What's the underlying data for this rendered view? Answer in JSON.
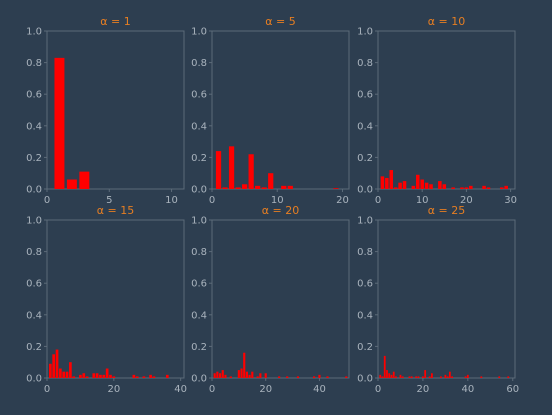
{
  "figure": {
    "background": "#2d3e50",
    "axes_color": "#5c6b79",
    "text_color": "#a9b3bd",
    "title_color": "#e67e22",
    "bar_color": "#ff0000"
  },
  "chart_data": [
    {
      "type": "bar",
      "title": "α = 1",
      "xlim": [
        0,
        11
      ],
      "ylim": [
        0,
        1.0
      ],
      "xticks": [
        0,
        5,
        10
      ],
      "yticks": [
        0.0,
        0.2,
        0.4,
        0.6,
        0.8,
        1.0
      ],
      "bar_width": 0.8,
      "x": [
        1,
        2,
        3
      ],
      "values": [
        0.83,
        0.06,
        0.11
      ]
    },
    {
      "type": "bar",
      "title": "α = 5",
      "xlim": [
        0,
        21
      ],
      "ylim": [
        0,
        1.0
      ],
      "xticks": [
        0,
        10,
        20
      ],
      "yticks": [
        0.0,
        0.2,
        0.4,
        0.6,
        0.8,
        1.0
      ],
      "bar_width": 0.8,
      "x": [
        1,
        2,
        3,
        4,
        5,
        6,
        7,
        8,
        9,
        10,
        11,
        12,
        13,
        14,
        15,
        16,
        17,
        18,
        19,
        20
      ],
      "values": [
        0.24,
        0.01,
        0.27,
        0.01,
        0.03,
        0.22,
        0.02,
        0.01,
        0.1,
        0.0,
        0.02,
        0.02,
        0.0,
        0.0,
        0.0,
        0.0,
        0.0,
        0.0,
        0.005,
        0.0
      ]
    },
    {
      "type": "bar",
      "title": "α = 10",
      "xlim": [
        0,
        31
      ],
      "ylim": [
        0,
        1.0
      ],
      "xticks": [
        0,
        10,
        20,
        30
      ],
      "yticks": [
        0.0,
        0.2,
        0.4,
        0.6,
        0.8,
        1.0
      ],
      "bar_width": 0.8,
      "x": [
        1,
        2,
        3,
        4,
        5,
        6,
        7,
        8,
        9,
        10,
        11,
        12,
        13,
        14,
        15,
        16,
        17,
        18,
        19,
        20,
        21,
        22,
        23,
        24,
        25,
        26,
        27,
        28,
        29,
        30
      ],
      "values": [
        0.08,
        0.07,
        0.12,
        0.01,
        0.04,
        0.05,
        0.0,
        0.02,
        0.09,
        0.06,
        0.04,
        0.03,
        0.0,
        0.05,
        0.03,
        0.0,
        0.01,
        0.0,
        0.01,
        0.01,
        0.02,
        0.0,
        0.0,
        0.02,
        0.01,
        0.0,
        0.0,
        0.01,
        0.02,
        0.0
      ]
    },
    {
      "type": "bar",
      "title": "α = 15",
      "xlim": [
        0,
        41
      ],
      "ylim": [
        0,
        1.0
      ],
      "xticks": [
        0,
        20,
        40
      ],
      "yticks": [
        0.0,
        0.2,
        0.4,
        0.6,
        0.8,
        1.0
      ],
      "bar_width": 0.8,
      "x": [
        1,
        2,
        3,
        4,
        5,
        6,
        7,
        8,
        9,
        10,
        11,
        12,
        13,
        14,
        15,
        16,
        17,
        18,
        19,
        20,
        21,
        22,
        23,
        24,
        25,
        26,
        27,
        28,
        29,
        30,
        31,
        32,
        33,
        34,
        35,
        36,
        37,
        38,
        39,
        40
      ],
      "values": [
        0.09,
        0.15,
        0.18,
        0.06,
        0.04,
        0.04,
        0.1,
        0.01,
        0.0,
        0.02,
        0.03,
        0.01,
        0.0,
        0.03,
        0.03,
        0.02,
        0.02,
        0.06,
        0.02,
        0.01,
        0.0,
        0.0,
        0.0,
        0.0,
        0.0,
        0.02,
        0.01,
        0.0,
        0.01,
        0.0,
        0.02,
        0.01,
        0.0,
        0.0,
        0.0,
        0.02,
        0.0,
        0.0,
        0.0,
        0.0
      ]
    },
    {
      "type": "bar",
      "title": "α = 20",
      "xlim": [
        0,
        51
      ],
      "ylim": [
        0,
        1.0
      ],
      "xticks": [
        0,
        20,
        40
      ],
      "yticks": [
        0.0,
        0.2,
        0.4,
        0.6,
        0.8,
        1.0
      ],
      "bar_width": 0.8,
      "x": [
        1,
        2,
        3,
        4,
        5,
        6,
        7,
        8,
        9,
        10,
        11,
        12,
        13,
        14,
        15,
        16,
        17,
        18,
        19,
        20,
        21,
        22,
        23,
        24,
        25,
        26,
        27,
        28,
        29,
        30,
        31,
        32,
        33,
        34,
        35,
        36,
        37,
        38,
        39,
        40,
        41,
        42,
        43,
        44,
        45,
        46,
        47,
        48,
        49,
        50
      ],
      "values": [
        0.03,
        0.04,
        0.03,
        0.05,
        0.02,
        0.0,
        0.01,
        0.0,
        0.0,
        0.05,
        0.06,
        0.16,
        0.04,
        0.02,
        0.04,
        0.0,
        0.01,
        0.03,
        0.0,
        0.03,
        0.0,
        0.0,
        0.0,
        0.0,
        0.01,
        0.0,
        0.0,
        0.01,
        0.0,
        0.0,
        0.0,
        0.01,
        0.0,
        0.0,
        0.0,
        0.0,
        0.0,
        0.01,
        0.0,
        0.02,
        0.0,
        0.0,
        0.01,
        0.0,
        0.0,
        0.0,
        0.0,
        0.0,
        0.0,
        0.01
      ]
    },
    {
      "type": "bar",
      "title": "α = 25",
      "xlim": [
        0,
        61
      ],
      "ylim": [
        0,
        1.0
      ],
      "xticks": [
        0,
        20,
        40,
        60
      ],
      "yticks": [
        0.0,
        0.2,
        0.4,
        0.6,
        0.8,
        1.0
      ],
      "bar_width": 0.8,
      "x": [
        1,
        2,
        3,
        4,
        5,
        6,
        7,
        8,
        9,
        10,
        11,
        12,
        13,
        14,
        15,
        16,
        17,
        18,
        19,
        20,
        21,
        22,
        23,
        24,
        25,
        26,
        27,
        28,
        29,
        30,
        31,
        32,
        33,
        34,
        35,
        36,
        37,
        38,
        39,
        40,
        41,
        42,
        43,
        44,
        45,
        46,
        47,
        48,
        49,
        50,
        51,
        52,
        53,
        54,
        55,
        56,
        57,
        58,
        59,
        60
      ],
      "values": [
        0.02,
        0.01,
        0.14,
        0.05,
        0.03,
        0.02,
        0.04,
        0.01,
        0.0,
        0.02,
        0.01,
        0.0,
        0.0,
        0.01,
        0.01,
        0.0,
        0.01,
        0.01,
        0.0,
        0.01,
        0.05,
        0.0,
        0.01,
        0.03,
        0.0,
        0.0,
        0.0,
        0.01,
        0.0,
        0.02,
        0.01,
        0.04,
        0.01,
        0.0,
        0.0,
        0.0,
        0.0,
        0.0,
        0.01,
        0.02,
        0.0,
        0.0,
        0.0,
        0.0,
        0.0,
        0.01,
        0.0,
        0.0,
        0.0,
        0.0,
        0.0,
        0.0,
        0.0,
        0.01,
        0.0,
        0.0,
        0.0,
        0.01,
        0.0,
        0.0
      ]
    }
  ]
}
